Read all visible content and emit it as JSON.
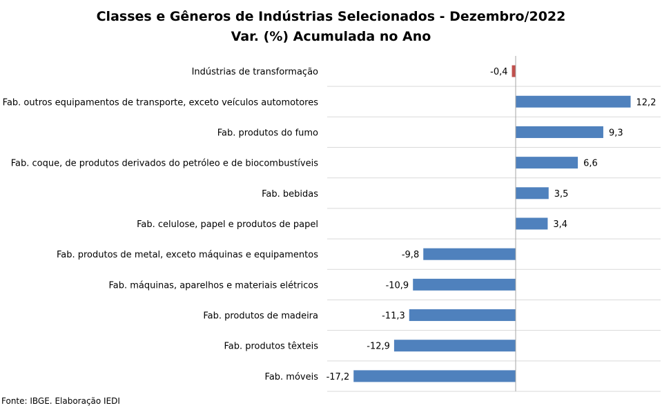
{
  "chart_data": {
    "type": "bar",
    "orientation": "horizontal",
    "title": "Classes e Gêneros de Indústrias Selecionados - Dezembro/2022",
    "subtitle": "Var. (%) Acumulada no Ano",
    "categories": [
      "Indústrias de transformação",
      "Fab. outros equipamentos de transporte, exceto veículos automotores",
      "Fab. produtos do fumo",
      "Fab. coque, de produtos derivados do petróleo e de biocombustíveis",
      "Fab. bebidas",
      "Fab. celulose, papel e produtos de papel",
      "Fab. produtos de metal, exceto máquinas e equipamentos",
      "Fab. máquinas, aparelhos e materiais elétricos",
      "Fab. produtos de madeira",
      "Fab. produtos têxteis",
      "Fab. móveis"
    ],
    "values": [
      -0.4,
      12.2,
      9.3,
      6.6,
      3.5,
      3.4,
      -9.8,
      -10.9,
      -11.3,
      -12.9,
      -17.2
    ],
    "value_labels": [
      "-0,4",
      "12,2",
      "9,3",
      "6,6",
      "3,5",
      "3,4",
      "-9,8",
      "-10,9",
      "-11,3",
      "-12,9",
      "-17,2"
    ],
    "colors": {
      "highlight": "#C0504D",
      "default": "#4F81BD",
      "gridline": "#D9D9D9",
      "axis": "#A6A6A6"
    },
    "highlight_index": 0,
    "grid": true,
    "legend": "none"
  },
  "source": "Fonte: IBGE. Elaboração IEDI"
}
